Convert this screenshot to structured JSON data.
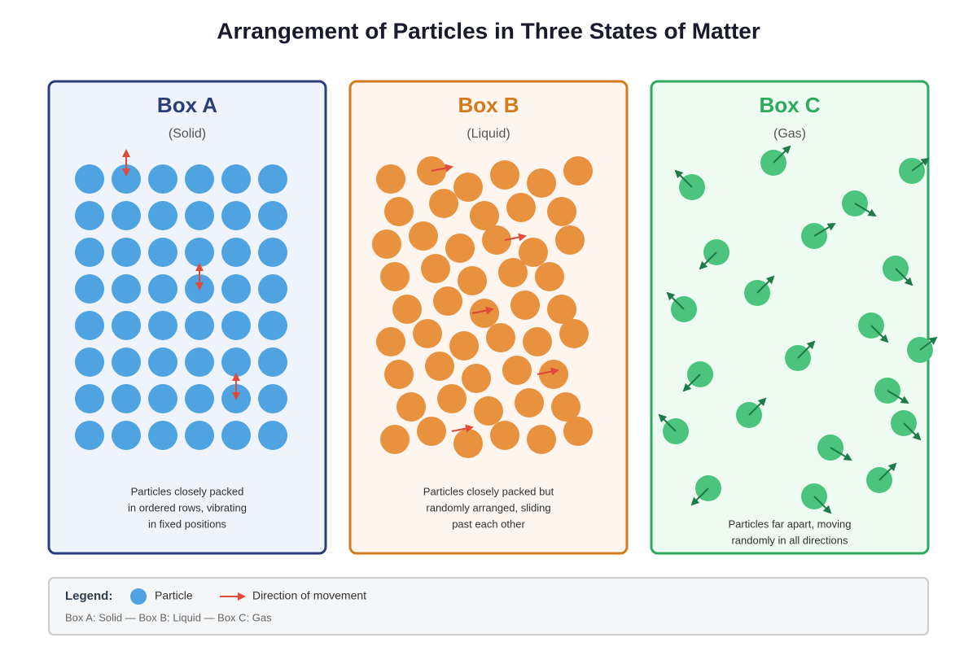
{
  "title": "Arrangement of Particles in Three States of Matter",
  "boxes": [
    {
      "label": "Box A",
      "state": "(Solid)",
      "description": [
        "Particles closely packed",
        "in ordered rows, vibrating",
        "in fixed positions"
      ]
    },
    {
      "label": "Box B",
      "state": "(Liquid)",
      "description": [
        "Particles closely packed but",
        "randomly arranged, sliding",
        "past each other"
      ]
    },
    {
      "label": "Box C",
      "state": "(Gas)",
      "description": [
        "Particles far apart, moving",
        "randomly in all directions"
      ]
    }
  ],
  "legend": {
    "title": "Legend:",
    "items": [
      "Particle",
      "Direction of movement"
    ],
    "note": "Box A: Solid — Box B: Liquid — Box C: Gas"
  }
}
